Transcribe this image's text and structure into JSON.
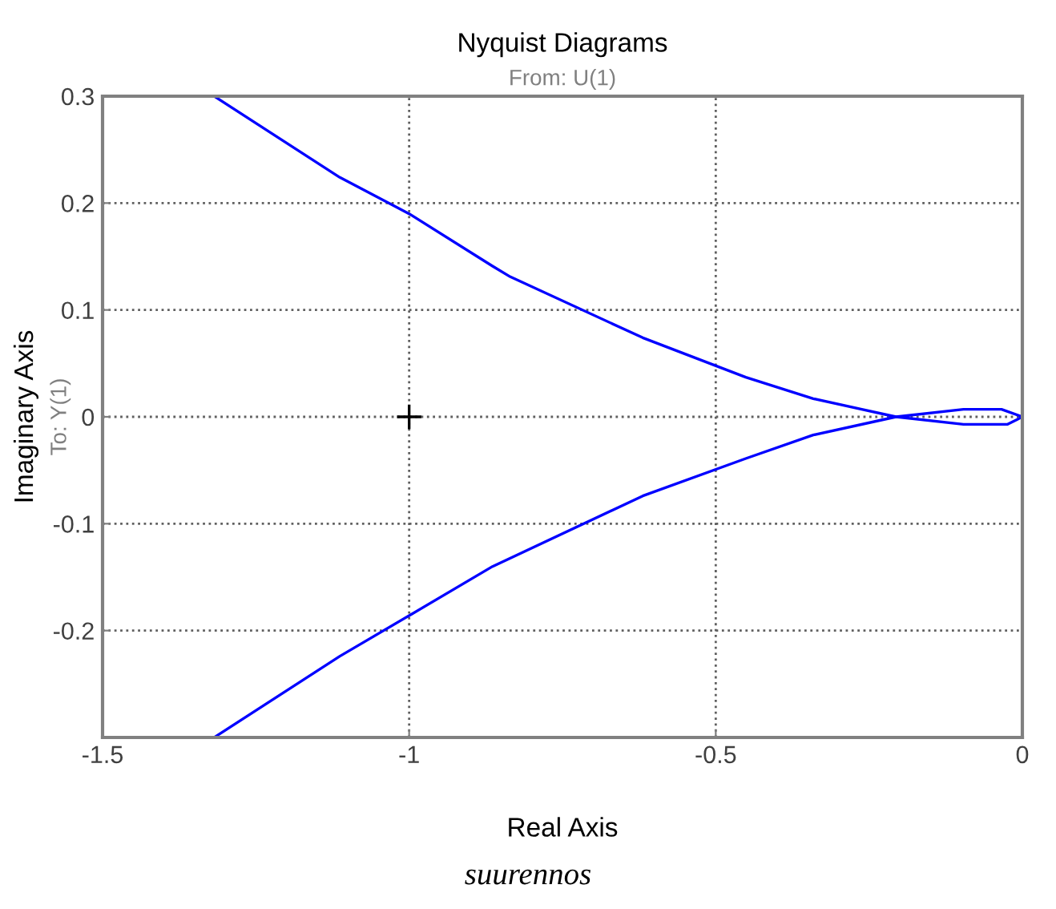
{
  "chart_data": {
    "type": "line",
    "title": "Nyquist Diagrams",
    "subtitle": "From: U(1)",
    "xlabel": "Real Axis",
    "ylabel": "Imaginary Axis",
    "annotations": [
      "To: Y(1)",
      "suurennos"
    ],
    "xlim": [
      -1.5,
      0
    ],
    "xticks": [
      -1.5,
      -1,
      -0.5,
      0
    ],
    "ylim": [
      -0.3,
      0.3
    ],
    "yticks": [
      -0.2,
      -0.1,
      0,
      0.1,
      0.2,
      0.3
    ],
    "grid": true,
    "marker": "none",
    "line_style": "solid",
    "series": [
      {
        "color": "#0000ff",
        "x": [
          -1.318,
          -1.113,
          -1.0,
          -0.864,
          -0.835,
          -0.619,
          -0.451,
          -0.341,
          -0.206,
          -0.096,
          -0.024,
          0
        ],
        "values": [
          0.3,
          0.224,
          0.19,
          0.141,
          0.131,
          0.074,
          0.037,
          0.017,
          0,
          -0.007,
          -0.007,
          0
        ]
      },
      {
        "color": "#0000ff",
        "x": [
          0,
          -0.034,
          -0.096,
          -0.206,
          -0.341,
          -0.451,
          -0.619,
          -0.864,
          -1.0,
          -1.113,
          -1.318
        ],
        "values": [
          0,
          0.007,
          0.007,
          0,
          -0.017,
          -0.039,
          -0.074,
          -0.14,
          -0.186,
          -0.224,
          -0.3
        ]
      },
      {
        "type": "scatter",
        "color": "#000000",
        "marker": "cross",
        "x": [
          -1
        ],
        "values": [
          0
        ]
      }
    ]
  }
}
